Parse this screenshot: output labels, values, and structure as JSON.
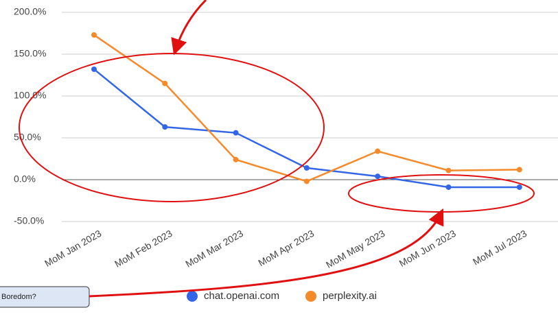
{
  "chart_data": {
    "type": "line",
    "categories": [
      "MoM Jan 2023",
      "MoM Feb 2023",
      "MoM Mar 2023",
      "MoM Apr 2023",
      "MoM May 2023",
      "MoM Jun 2023",
      "MoM Jul 2023"
    ],
    "series": [
      {
        "name": "chat.openai.com",
        "color": "#3366e6",
        "values": [
          132,
          63,
          56,
          14,
          4,
          -9,
          -9
        ]
      },
      {
        "name": "perplexity.ai",
        "color": "#f58a2a",
        "values": [
          173,
          115,
          24,
          -2,
          34,
          11,
          12
        ]
      }
    ],
    "ylim": [
      -50,
      200
    ],
    "yticks": [
      {
        "value": -50,
        "label": "-50.0%"
      },
      {
        "value": 0,
        "label": "0.0%"
      },
      {
        "value": 50,
        "label": "50.0%"
      },
      {
        "value": 100,
        "label": "100.0%"
      },
      {
        "value": 150,
        "label": "150.0%"
      },
      {
        "value": 200,
        "label": "200.0%"
      }
    ],
    "grid": true,
    "annotations": [
      "Boredom?"
    ]
  }
}
